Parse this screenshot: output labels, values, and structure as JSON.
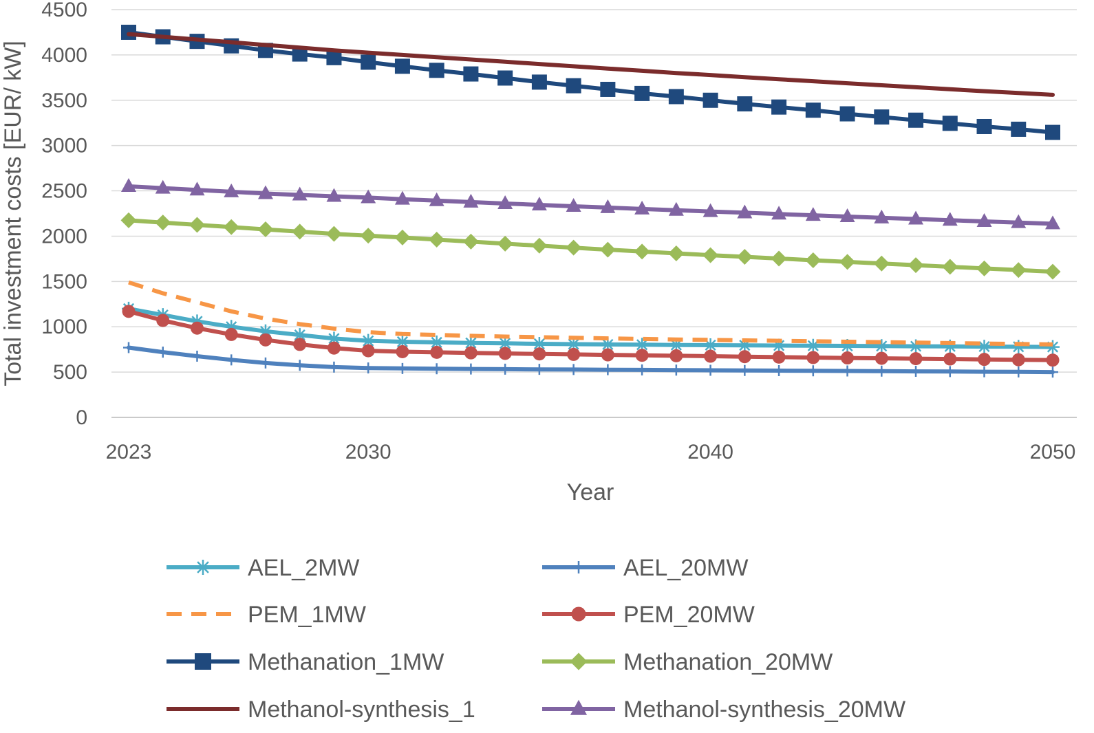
{
  "chart_data": {
    "type": "line",
    "xlabel": "Year",
    "ylabel": "Total investment costs [EUR/ kW]",
    "xlim": [
      2023,
      2050
    ],
    "ylim": [
      0,
      4500
    ],
    "x_ticks": [
      "2023",
      "2030",
      "2040",
      "2050"
    ],
    "y_ticks": [
      "0",
      "500",
      "1000",
      "1500",
      "2000",
      "2500",
      "3000",
      "3500",
      "4000",
      "4500"
    ],
    "grid": "horizontal",
    "legend_position": "bottom",
    "x": [
      2023,
      2024,
      2025,
      2026,
      2027,
      2028,
      2029,
      2030,
      2031,
      2032,
      2033,
      2034,
      2035,
      2036,
      2037,
      2038,
      2039,
      2040,
      2041,
      2042,
      2043,
      2044,
      2045,
      2046,
      2047,
      2048,
      2049,
      2050
    ],
    "series": [
      {
        "name": "AEL_2MW",
        "color": "#4BACC6",
        "marker": "star",
        "dash": "solid",
        "values": [
          1200,
          1130,
          1060,
          1000,
          950,
          910,
          870,
          845,
          835,
          828,
          822,
          817,
          812,
          808,
          805,
          802,
          799,
          797,
          795,
          793,
          791,
          789,
          787,
          785,
          783,
          781,
          779,
          777
        ]
      },
      {
        "name": "AEL_20MW",
        "color": "#4F81BD",
        "marker": "plus",
        "dash": "solid",
        "values": [
          770,
          720,
          675,
          635,
          600,
          575,
          555,
          545,
          540,
          537,
          534,
          532,
          530,
          528,
          526,
          524,
          522,
          520,
          518,
          516,
          514,
          512,
          510,
          508,
          506,
          504,
          502,
          500
        ]
      },
      {
        "name": "PEM_1MW",
        "color": "#F79646",
        "marker": "none",
        "dash": "dashed",
        "values": [
          1490,
          1370,
          1270,
          1170,
          1090,
          1030,
          980,
          940,
          920,
          910,
          900,
          892,
          885,
          878,
          872,
          866,
          860,
          855,
          850,
          845,
          840,
          835,
          830,
          825,
          820,
          815,
          810,
          805
        ]
      },
      {
        "name": "PEM_20MW",
        "color": "#C0504D",
        "marker": "circle",
        "dash": "solid",
        "values": [
          1170,
          1070,
          985,
          915,
          855,
          805,
          765,
          735,
          725,
          718,
          712,
          706,
          700,
          695,
          690,
          685,
          680,
          675,
          670,
          665,
          660,
          656,
          652,
          648,
          644,
          640,
          636,
          632
        ]
      },
      {
        "name": "Methanation_1MW",
        "color": "#1F497D",
        "marker": "square",
        "dash": "solid",
        "values": [
          4250,
          4200,
          4150,
          4100,
          4050,
          4010,
          3970,
          3920,
          3875,
          3830,
          3790,
          3745,
          3700,
          3660,
          3620,
          3575,
          3540,
          3500,
          3460,
          3425,
          3390,
          3350,
          3315,
          3280,
          3245,
          3210,
          3180,
          3145
        ]
      },
      {
        "name": "Methanation_20MW",
        "color": "#9BBB59",
        "marker": "diamond",
        "dash": "solid",
        "values": [
          2175,
          2150,
          2125,
          2100,
          2075,
          2050,
          2025,
          2005,
          1985,
          1962,
          1940,
          1917,
          1895,
          1873,
          1851,
          1830,
          1810,
          1790,
          1772,
          1753,
          1734,
          1716,
          1698,
          1680,
          1662,
          1644,
          1626,
          1608
        ]
      },
      {
        "name": "Methanol-synthesis_1",
        "color": "#7B2C2C",
        "marker": "none",
        "dash": "solid",
        "values": [
          4230,
          4200,
          4170,
          4140,
          4110,
          4080,
          4050,
          4025,
          4000,
          3975,
          3950,
          3925,
          3900,
          3875,
          3850,
          3825,
          3800,
          3778,
          3755,
          3732,
          3710,
          3687,
          3665,
          3643,
          3621,
          3600,
          3580,
          3560
        ]
      },
      {
        "name": "Methanol-synthesis_20MW",
        "color": "#8064A2",
        "marker": "triangle",
        "dash": "solid",
        "values": [
          2550,
          2530,
          2510,
          2490,
          2470,
          2455,
          2440,
          2425,
          2408,
          2392,
          2376,
          2360,
          2345,
          2330,
          2315,
          2300,
          2286,
          2272,
          2258,
          2244,
          2230,
          2216,
          2202,
          2189,
          2176,
          2163,
          2150,
          2137
        ]
      }
    ]
  }
}
